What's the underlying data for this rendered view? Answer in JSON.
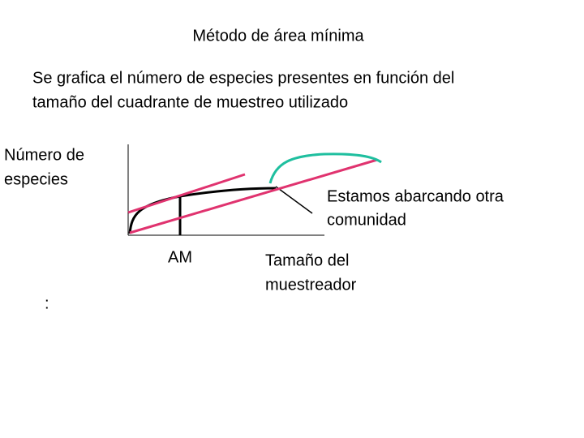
{
  "title": "Método de área mínima",
  "description": [
    "Se grafica el número de especies presentes en función del",
    "tamaño del cuadrante de muestreo utilizado"
  ],
  "y_axis_label": [
    "Número de",
    "especies"
  ],
  "x_axis_label": [
    "Tamaño del",
    "muestreador"
  ],
  "marker_label": "AM",
  "annotation": [
    "Estamos abarcando otra",
    "comunidad"
  ],
  "footnote": ":"
}
